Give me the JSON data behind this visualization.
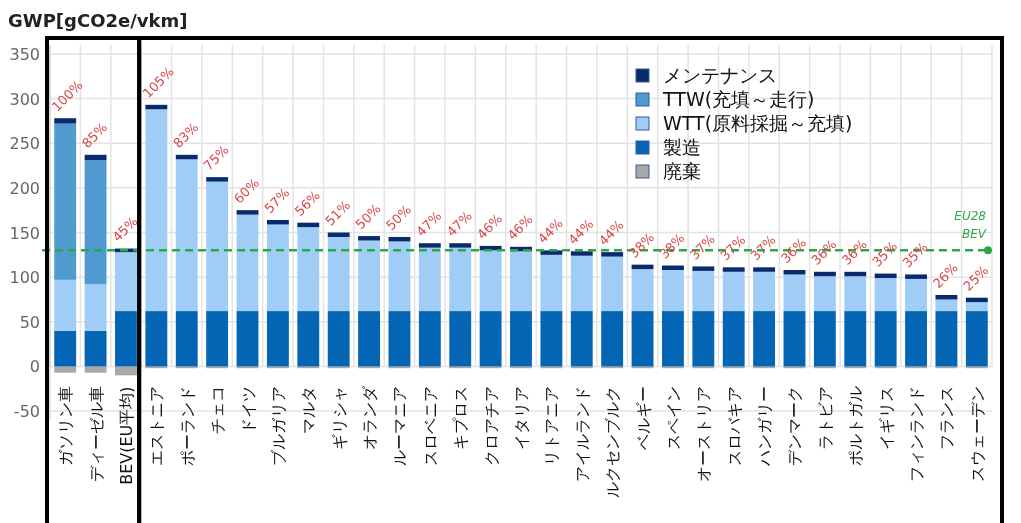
{
  "chart_data": {
    "type": "bar",
    "stacked": true,
    "ylabel": "GWP[gCO2e/vkm]",
    "categories": [
      "ガソリン車",
      "ディーゼル車",
      "BEV(EU平均)",
      "エストニア",
      "ポーランド",
      "チェコ",
      "ドイツ",
      "ブルガリア",
      "マルタ",
      "ギリシャ",
      "オランダ",
      "ルーマニア",
      "スロベニア",
      "キプロス",
      "クロアチア",
      "イタリア",
      "リトアニア",
      "アイルランド",
      "ルクセンブルク",
      "ベルギー",
      "スペイン",
      "オーストリア",
      "スロバキア",
      "ハンガリー",
      "デンマーク",
      "ラトビア",
      "ポルトガル",
      "イギリス",
      "フィンランド",
      "フランス",
      "スウェーデン"
    ],
    "series": [
      {
        "name": "廃棄",
        "color": "#a8a8a8",
        "values": [
          -7,
          -7,
          -10,
          -2,
          -2,
          -2,
          -2,
          -2,
          -2,
          -2,
          -2,
          -2,
          -2,
          -2,
          -2,
          -2,
          -2,
          -2,
          -2,
          -2,
          -2,
          -2,
          -2,
          -2,
          -2,
          -2,
          -2,
          -2,
          -2,
          -2,
          -2
        ]
      },
      {
        "name": "製造",
        "color": "#0565b5",
        "values": [
          40,
          40,
          62,
          62,
          62,
          62,
          62,
          62,
          62,
          62,
          62,
          62,
          62,
          62,
          62,
          62,
          62,
          62,
          62,
          62,
          62,
          62,
          62,
          62,
          62,
          62,
          62,
          62,
          62,
          62,
          62
        ]
      },
      {
        "name": "WTT(原料採掘～充填)",
        "color": "#9fcdf5",
        "values": [
          57,
          52,
          66,
          226,
          170,
          145,
          108,
          97,
          94,
          83,
          79,
          78,
          71,
          71,
          68,
          67,
          63,
          62,
          61,
          47,
          46,
          45,
          44,
          44,
          41,
          39,
          39,
          37,
          36,
          13,
          10
        ]
      },
      {
        "name": "TTW(充填～走行)",
        "color": "#4f9bd0",
        "values": [
          175,
          139,
          0,
          0,
          0,
          0,
          0,
          0,
          0,
          0,
          0,
          0,
          0,
          0,
          0,
          0,
          0,
          0,
          0,
          0,
          0,
          0,
          0,
          0,
          0,
          0,
          0,
          0,
          0,
          0,
          0
        ]
      },
      {
        "name": "メンテナンス",
        "color": "#0a2a6e",
        "values": [
          6,
          6,
          4,
          5,
          5,
          5,
          5,
          5,
          5,
          5,
          5,
          5,
          5,
          5,
          5,
          5,
          5,
          5,
          5,
          5,
          5,
          5,
          5,
          5,
          5,
          5,
          5,
          5,
          5,
          5,
          5
        ]
      }
    ],
    "ylim": [
      -60,
      360
    ],
    "yticks": [
      -50,
      0,
      50,
      100,
      150,
      200,
      250,
      300,
      350
    ],
    "grid": true,
    "legend": "top right",
    "ref_lines": [
      {
        "axis": "y",
        "value": 130,
        "label": "EU28 BEV",
        "color": "#2ca84a",
        "line_style": "dashed"
      }
    ],
    "annotations": [
      {
        "text": "100%",
        "x": "ガソリン車",
        "y": 278
      },
      {
        "text": "85%",
        "x": "ディーゼル車",
        "y": 237
      },
      {
        "text": "45%",
        "x": "BEV(EU平均)",
        "y": 132
      },
      {
        "text": "105%",
        "x": "エストニア",
        "y": 293
      },
      {
        "text": "83%",
        "x": "ポーランド",
        "y": 237
      },
      {
        "text": "75%",
        "x": "チェコ",
        "y": 212
      },
      {
        "text": "60%",
        "x": "ドイツ",
        "y": 175
      },
      {
        "text": "57%",
        "x": "ブルガリア",
        "y": 164
      },
      {
        "text": "56%",
        "x": "マルタ",
        "y": 161
      },
      {
        "text": "51%",
        "x": "ギリシャ",
        "y": 150
      },
      {
        "text": "50%",
        "x": "オランダ",
        "y": 146
      },
      {
        "text": "50%",
        "x": "ルーマニア",
        "y": 145
      },
      {
        "text": "47%",
        "x": "スロベニア",
        "y": 138
      },
      {
        "text": "47%",
        "x": "キプロス",
        "y": 138
      },
      {
        "text": "46%",
        "x": "クロアチア",
        "y": 135
      },
      {
        "text": "46%",
        "x": "イタリア",
        "y": 134
      },
      {
        "text": "44%",
        "x": "リトアニア",
        "y": 130
      },
      {
        "text": "44%",
        "x": "アイルランド",
        "y": 129
      },
      {
        "text": "44%",
        "x": "ルクセンブルク",
        "y": 128
      },
      {
        "text": "38%",
        "x": "ベルギー",
        "y": 114
      },
      {
        "text": "38%",
        "x": "スペイン",
        "y": 113
      },
      {
        "text": "37%",
        "x": "オーストリア",
        "y": 112
      },
      {
        "text": "37%",
        "x": "スロバキア",
        "y": 111
      },
      {
        "text": "37%",
        "x": "ハンガリー",
        "y": 111
      },
      {
        "text": "36%",
        "x": "デンマーク",
        "y": 108
      },
      {
        "text": "36%",
        "x": "ラトビア",
        "y": 106
      },
      {
        "text": "36%",
        "x": "ポルトガル",
        "y": 106
      },
      {
        "text": "35%",
        "x": "イギリス",
        "y": 104
      },
      {
        "text": "35%",
        "x": "フィンランド",
        "y": 103
      },
      {
        "text": "26%",
        "x": "フランス",
        "y": 80
      },
      {
        "text": "25%",
        "x": "スウェーデン",
        "y": 77
      }
    ]
  }
}
